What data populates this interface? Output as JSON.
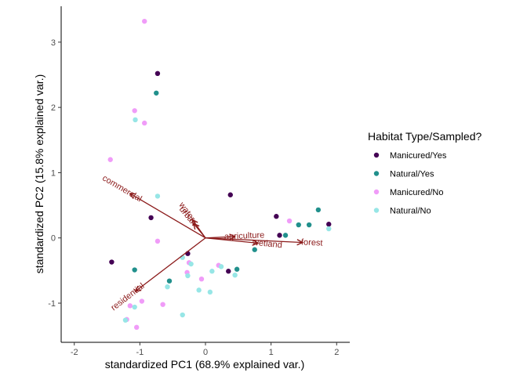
{
  "chart_data": {
    "type": "scatter",
    "xlabel": "standardized PC1 (68.9% explained var.)",
    "ylabel": "standardized PC2 (15.8% explained var.)",
    "xlim": [
      -2.2,
      2.2
    ],
    "ylim": [
      -1.6,
      3.55
    ],
    "xticks": [
      -2,
      -1,
      0,
      1,
      2
    ],
    "yticks": [
      -1,
      0,
      1,
      2,
      3
    ],
    "grid": false,
    "legend": {
      "title": "Habitat Type/Sampled?",
      "position": "right"
    },
    "arrow_color": "#8b1a1a",
    "series": [
      {
        "name": "Manicured/Yes",
        "color": "#440154",
        "points": [
          [
            -0.73,
            2.52
          ],
          [
            0.38,
            0.66
          ],
          [
            -0.83,
            0.31
          ],
          [
            1.08,
            0.33
          ],
          [
            1.13,
            0.04
          ],
          [
            1.88,
            0.21
          ],
          [
            -1.43,
            -0.37
          ],
          [
            -0.27,
            -0.24
          ],
          [
            0.35,
            -0.51
          ]
        ]
      },
      {
        "name": "Natural/Yes",
        "color": "#21908c",
        "points": [
          [
            -0.75,
            2.22
          ],
          [
            1.72,
            0.43
          ],
          [
            1.42,
            0.2
          ],
          [
            1.58,
            0.2
          ],
          [
            1.22,
            0.04
          ],
          [
            0.75,
            -0.18
          ],
          [
            -1.08,
            -0.49
          ],
          [
            0.48,
            -0.48
          ],
          [
            -0.55,
            -0.66
          ]
        ]
      },
      {
        "name": "Manicured/No",
        "color": "#f09cf8",
        "points": [
          [
            -0.93,
            3.32
          ],
          [
            -1.08,
            1.95
          ],
          [
            -0.93,
            1.76
          ],
          [
            -1.45,
            1.2
          ],
          [
            1.28,
            0.26
          ],
          [
            -0.73,
            -0.05
          ],
          [
            -0.25,
            -0.38
          ],
          [
            0.2,
            -0.42
          ],
          [
            -0.28,
            -0.53
          ],
          [
            -0.06,
            -0.63
          ],
          [
            -0.97,
            -0.97
          ],
          [
            -1.15,
            -1.04
          ],
          [
            -0.65,
            -1.02
          ],
          [
            -1.05,
            -1.37
          ],
          [
            -1.2,
            -1.25
          ]
        ]
      },
      {
        "name": "Natural/No",
        "color": "#97e6e6",
        "points": [
          [
            -1.07,
            1.81
          ],
          [
            -0.73,
            0.64
          ],
          [
            1.88,
            0.14
          ],
          [
            -0.35,
            -0.3
          ],
          [
            -0.22,
            -0.4
          ],
          [
            0.24,
            -0.44
          ],
          [
            0.1,
            -0.51
          ],
          [
            -0.27,
            -0.58
          ],
          [
            0.45,
            -0.57
          ],
          [
            -0.58,
            -0.75
          ],
          [
            -0.1,
            -0.8
          ],
          [
            0.07,
            -0.83
          ],
          [
            -1.08,
            -1.06
          ],
          [
            -0.35,
            -1.18
          ],
          [
            -1.22,
            -1.26
          ]
        ]
      }
    ],
    "loadings": [
      {
        "name": "commercial",
        "x": -1.15,
        "y": 0.68
      },
      {
        "name": "residential",
        "x": -1.07,
        "y": -0.82
      },
      {
        "name": "water",
        "x": -0.2,
        "y": 0.28
      },
      {
        "name": "urban",
        "x": -0.18,
        "y": 0.22
      },
      {
        "name": "agriculture",
        "x": 0.45,
        "y": 0.02
      },
      {
        "name": "wetland",
        "x": 0.8,
        "y": -0.08
      },
      {
        "name": "forest",
        "x": 1.48,
        "y": -0.07
      }
    ]
  }
}
